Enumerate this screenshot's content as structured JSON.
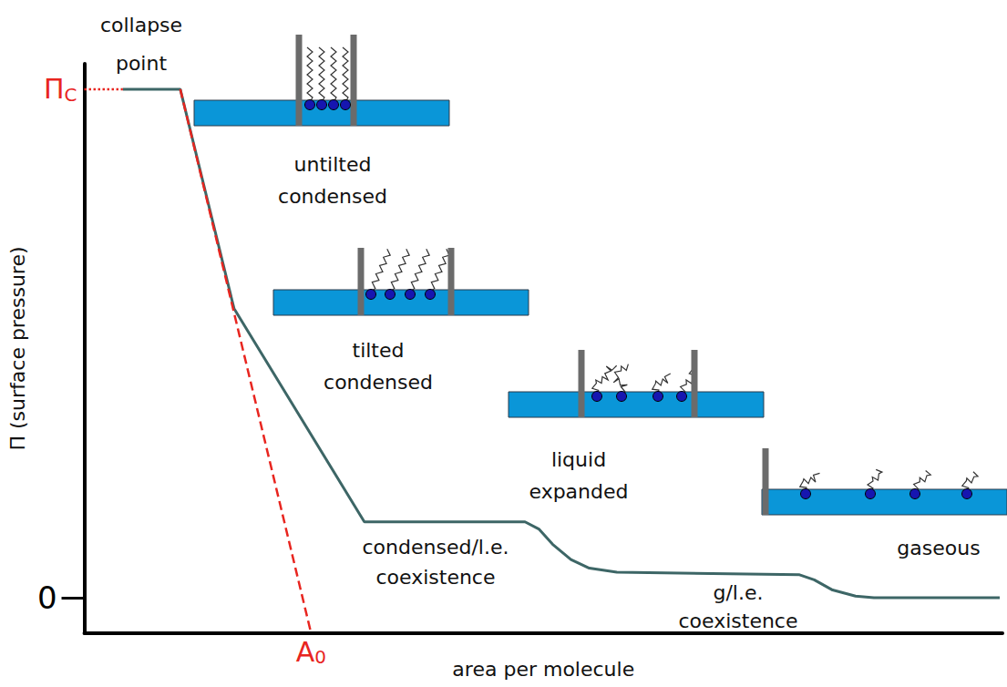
{
  "chart_data": {
    "type": "line",
    "x_label": "area per molecule",
    "y_label": "Π (surface pressure)",
    "xlim": [
      0,
      100
    ],
    "ylim": [
      -7,
      105
    ],
    "yticks": [
      0
    ],
    "tick_labels": "y",
    "grid": false,
    "series": [
      {
        "color": "#3d6666",
        "line_style": "solid",
        "marker": "none",
        "x": [
          4.2,
          10.45,
          16.3,
          30.5,
          48.0,
          49.5,
          51.0,
          53.0,
          55.0,
          58.0,
          77.9,
          79.5,
          81.5,
          84.0,
          86.0,
          99.7
        ],
        "values": [
          100,
          100,
          56.9,
          14.9,
          14.9,
          13.5,
          10.5,
          7.5,
          5.8,
          5.0,
          4.5,
          3.5,
          1.5,
          0.3,
          0,
          0
        ]
      },
      {
        "color": "#e8251f",
        "line_style": "dashed",
        "marker": "none",
        "x": [
          10.45,
          24.7
        ],
        "values": [
          100,
          -7
        ],
        "point_labels": [
          null,
          "A0"
        ]
      },
      {
        "color": "#e8251f",
        "line_style": "dotted",
        "marker": "none",
        "x": [
          0,
          4.2
        ],
        "values": [
          100,
          100
        ],
        "point_labels": [
          "ΠC",
          null
        ]
      }
    ],
    "annotations": [
      "collapse point",
      "untilted condensed",
      "tilted condensed",
      "liquid expanded",
      "gaseous",
      "condensed/l.e. coexistence",
      "g/l.e. coexistence"
    ]
  }
}
